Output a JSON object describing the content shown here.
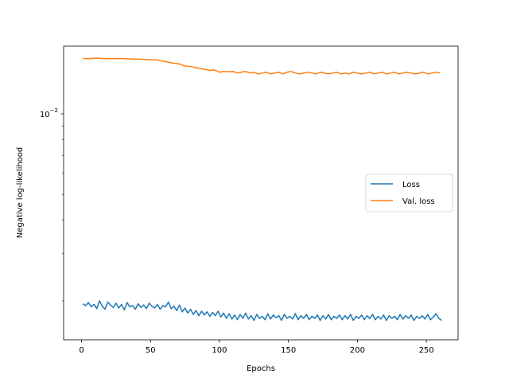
{
  "chart_data": {
    "type": "line",
    "xlabel": "Epochs",
    "ylabel": "Negative log-likelihood",
    "xlim": [
      -13,
      273
    ],
    "ylim": [
      0.00143,
      0.0179
    ],
    "yscale": "log",
    "x_ticks": [
      0,
      50,
      100,
      150,
      200,
      250
    ],
    "y_ticks": [
      {
        "value": 0.01,
        "base": "10",
        "exp": "−2"
      }
    ],
    "grid": false,
    "legend_placement": "center-right",
    "series": [
      {
        "name": "Loss",
        "color": "#1f77b4",
        "x": [
          1,
          3,
          5,
          7,
          9,
          11,
          13,
          15,
          17,
          19,
          21,
          23,
          25,
          27,
          29,
          31,
          33,
          35,
          37,
          39,
          41,
          43,
          45,
          47,
          49,
          51,
          53,
          55,
          57,
          59,
          61,
          63,
          65,
          67,
          69,
          71,
          73,
          75,
          77,
          79,
          81,
          83,
          85,
          87,
          89,
          91,
          93,
          95,
          97,
          99,
          101,
          103,
          105,
          107,
          109,
          111,
          113,
          115,
          117,
          119,
          121,
          123,
          125,
          127,
          129,
          131,
          133,
          135,
          137,
          139,
          141,
          143,
          145,
          147,
          149,
          151,
          153,
          155,
          157,
          159,
          161,
          163,
          165,
          167,
          169,
          171,
          173,
          175,
          177,
          179,
          181,
          183,
          185,
          187,
          189,
          191,
          193,
          195,
          197,
          199,
          201,
          203,
          205,
          207,
          209,
          211,
          213,
          215,
          217,
          219,
          221,
          223,
          225,
          227,
          229,
          231,
          233,
          235,
          237,
          239,
          241,
          243,
          245,
          247,
          249,
          251,
          253,
          255,
          257,
          259,
          261
        ],
        "y": [
          0.00195,
          0.00192,
          0.00197,
          0.0019,
          0.00194,
          0.00187,
          0.002,
          0.00191,
          0.00186,
          0.00198,
          0.00193,
          0.00189,
          0.00196,
          0.00188,
          0.00194,
          0.00185,
          0.00197,
          0.0019,
          0.00192,
          0.00186,
          0.00195,
          0.00189,
          0.00193,
          0.00187,
          0.00196,
          0.00191,
          0.00188,
          0.00194,
          0.00186,
          0.00192,
          0.0019,
          0.00198,
          0.00187,
          0.00191,
          0.00184,
          0.00193,
          0.00182,
          0.00188,
          0.0018,
          0.00186,
          0.00178,
          0.00184,
          0.00176,
          0.00183,
          0.00177,
          0.00182,
          0.00175,
          0.00181,
          0.00176,
          0.00183,
          0.00174,
          0.0018,
          0.00172,
          0.00179,
          0.00171,
          0.00177,
          0.0017,
          0.00178,
          0.00172,
          0.0018,
          0.00171,
          0.00176,
          0.00169,
          0.00178,
          0.00172,
          0.00175,
          0.0017,
          0.00179,
          0.00171,
          0.00177,
          0.00173,
          0.00176,
          0.00169,
          0.00178,
          0.00172,
          0.00175,
          0.00171,
          0.00179,
          0.0017,
          0.00176,
          0.00172,
          0.00178,
          0.0017,
          0.00175,
          0.00172,
          0.00177,
          0.00169,
          0.00176,
          0.00171,
          0.00178,
          0.0017,
          0.00175,
          0.00172,
          0.00177,
          0.0017,
          0.00176,
          0.00171,
          0.00178,
          0.00169,
          0.00175,
          0.00172,
          0.00177,
          0.0017,
          0.00176,
          0.00172,
          0.00178,
          0.0017,
          0.00175,
          0.00171,
          0.00177,
          0.00169,
          0.00176,
          0.00172,
          0.00175,
          0.0017,
          0.00178,
          0.00171,
          0.00176,
          0.00172,
          0.00177,
          0.00169,
          0.00175,
          0.00172,
          0.00176,
          0.00171,
          0.00178,
          0.0017,
          0.00174,
          0.00179,
          0.00172,
          0.00169
        ]
      },
      {
        "name": "Val. loss",
        "color": "#ff7f0e",
        "x": [
          1,
          5,
          10,
          15,
          20,
          25,
          30,
          35,
          40,
          45,
          50,
          55,
          60,
          65,
          70,
          75,
          80,
          85,
          90,
          93,
          95,
          98,
          100,
          103,
          106,
          110,
          113,
          116,
          119,
          122,
          125,
          128,
          131,
          134,
          137,
          140,
          143,
          146,
          149,
          152,
          155,
          158,
          161,
          164,
          167,
          170,
          173,
          176,
          179,
          182,
          185,
          188,
          191,
          194,
          197,
          200,
          203,
          206,
          209,
          212,
          215,
          218,
          221,
          224,
          227,
          230,
          233,
          236,
          239,
          242,
          245,
          248,
          251,
          254,
          257,
          260
        ],
        "y": [
          0.0161,
          0.01605,
          0.01615,
          0.0161,
          0.01605,
          0.0161,
          0.01608,
          0.01603,
          0.016,
          0.01598,
          0.01593,
          0.0159,
          0.0157,
          0.0155,
          0.0154,
          0.0151,
          0.015,
          0.0148,
          0.01465,
          0.0145,
          0.0146,
          0.0145,
          0.0143,
          0.0144,
          0.01435,
          0.0144,
          0.0142,
          0.0143,
          0.0144,
          0.0142,
          0.0143,
          0.0141,
          0.0142,
          0.0143,
          0.0141,
          0.0142,
          0.0143,
          0.0141,
          0.0143,
          0.0144,
          0.0142,
          0.0141,
          0.0142,
          0.0143,
          0.0142,
          0.0141,
          0.0143,
          0.0142,
          0.0141,
          0.0142,
          0.0143,
          0.0141,
          0.0142,
          0.0141,
          0.0143,
          0.0142,
          0.0141,
          0.0142,
          0.0143,
          0.0141,
          0.0142,
          0.0143,
          0.0141,
          0.0142,
          0.0143,
          0.0141,
          0.0142,
          0.0143,
          0.0142,
          0.0141,
          0.0142,
          0.0143,
          0.0141,
          0.0142,
          0.0143,
          0.0142
        ]
      }
    ]
  }
}
